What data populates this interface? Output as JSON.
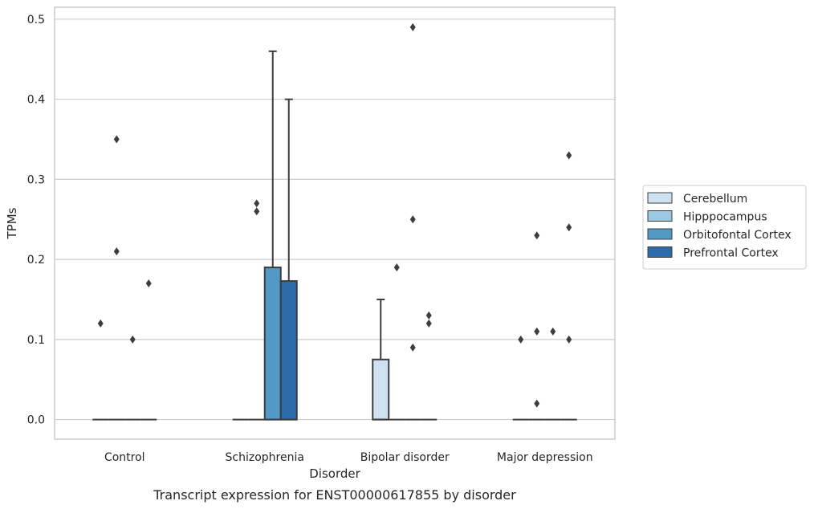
{
  "chart_data": {
    "type": "box",
    "title": "",
    "caption": "Transcript expression for ENST00000617855 by disorder",
    "xlabel": "Disorder",
    "ylabel": "TPMs",
    "ylim": [
      -0.0245,
      0.515
    ],
    "yticks": [
      0.0,
      0.1,
      0.2,
      0.3,
      0.4,
      0.5
    ],
    "ytick_labels": [
      "0.0",
      "0.1",
      "0.2",
      "0.3",
      "0.4",
      "0.5"
    ],
    "grid": "horizontal",
    "legend_placement": "right",
    "categories": [
      "Control",
      "Schizophrenia",
      "Bipolar disorder",
      "Major depression"
    ],
    "series": [
      {
        "name": "Cerebellum",
        "color": "#d0e1f2",
        "boxes": [
          {
            "category": "Control",
            "q1": 0,
            "median": 0,
            "q3": 0,
            "whisker_low": 0,
            "whisker_high": 0,
            "outliers": [
              0.12
            ]
          },
          {
            "category": "Schizophrenia",
            "q1": 0,
            "median": 0,
            "q3": 0,
            "whisker_low": 0,
            "whisker_high": 0,
            "outliers": []
          },
          {
            "category": "Bipolar disorder",
            "q1": 0,
            "median": 0,
            "q3": 0.075,
            "whisker_low": 0,
            "whisker_high": 0.15,
            "outliers": []
          },
          {
            "category": "Major depression",
            "q1": 0,
            "median": 0,
            "q3": 0,
            "whisker_low": 0,
            "whisker_high": 0,
            "outliers": [
              0.1
            ]
          }
        ]
      },
      {
        "name": "Hipppocampus",
        "color": "#9ac8e0",
        "boxes": [
          {
            "category": "Control",
            "q1": 0,
            "median": 0,
            "q3": 0,
            "whisker_low": 0,
            "whisker_high": 0,
            "outliers": [
              0.35,
              0.21
            ]
          },
          {
            "category": "Schizophrenia",
            "q1": 0,
            "median": 0,
            "q3": 0,
            "whisker_low": 0,
            "whisker_high": 0,
            "outliers": [
              0.27,
              0.26
            ]
          },
          {
            "category": "Bipolar disorder",
            "q1": 0,
            "median": 0,
            "q3": 0,
            "whisker_low": 0,
            "whisker_high": 0,
            "outliers": [
              0.19
            ]
          },
          {
            "category": "Major depression",
            "q1": 0,
            "median": 0,
            "q3": 0,
            "whisker_low": 0,
            "whisker_high": 0,
            "outliers": [
              0.23,
              0.11,
              0.02
            ]
          }
        ]
      },
      {
        "name": "Orbitofontal Cortex",
        "color": "#5399c6",
        "boxes": [
          {
            "category": "Control",
            "q1": 0,
            "median": 0,
            "q3": 0,
            "whisker_low": 0,
            "whisker_high": 0,
            "outliers": [
              0.1
            ]
          },
          {
            "category": "Schizophrenia",
            "q1": 0,
            "median": 0,
            "q3": 0.19,
            "whisker_low": 0,
            "whisker_high": 0.46,
            "outliers": []
          },
          {
            "category": "Bipolar disorder",
            "q1": 0,
            "median": 0,
            "q3": 0,
            "whisker_low": 0,
            "whisker_high": 0,
            "outliers": [
              0.49,
              0.25,
              0.09
            ]
          },
          {
            "category": "Major depression",
            "q1": 0,
            "median": 0,
            "q3": 0,
            "whisker_low": 0,
            "whisker_high": 0,
            "outliers": [
              0.11
            ]
          }
        ]
      },
      {
        "name": "Prefrontal Cortex",
        "color": "#2b6ba9",
        "boxes": [
          {
            "category": "Control",
            "q1": 0,
            "median": 0,
            "q3": 0,
            "whisker_low": 0,
            "whisker_high": 0,
            "outliers": [
              0.17
            ]
          },
          {
            "category": "Schizophrenia",
            "q1": 0,
            "median": 0,
            "q3": 0.173,
            "whisker_low": 0,
            "whisker_high": 0.4,
            "outliers": []
          },
          {
            "category": "Bipolar disorder",
            "q1": 0,
            "median": 0,
            "q3": 0,
            "whisker_low": 0,
            "whisker_high": 0,
            "outliers": [
              0.13,
              0.12
            ]
          },
          {
            "category": "Major depression",
            "q1": 0,
            "median": 0,
            "q3": 0,
            "whisker_low": 0,
            "whisker_high": 0,
            "outliers": [
              0.33,
              0.24,
              0.1
            ]
          }
        ]
      }
    ]
  }
}
